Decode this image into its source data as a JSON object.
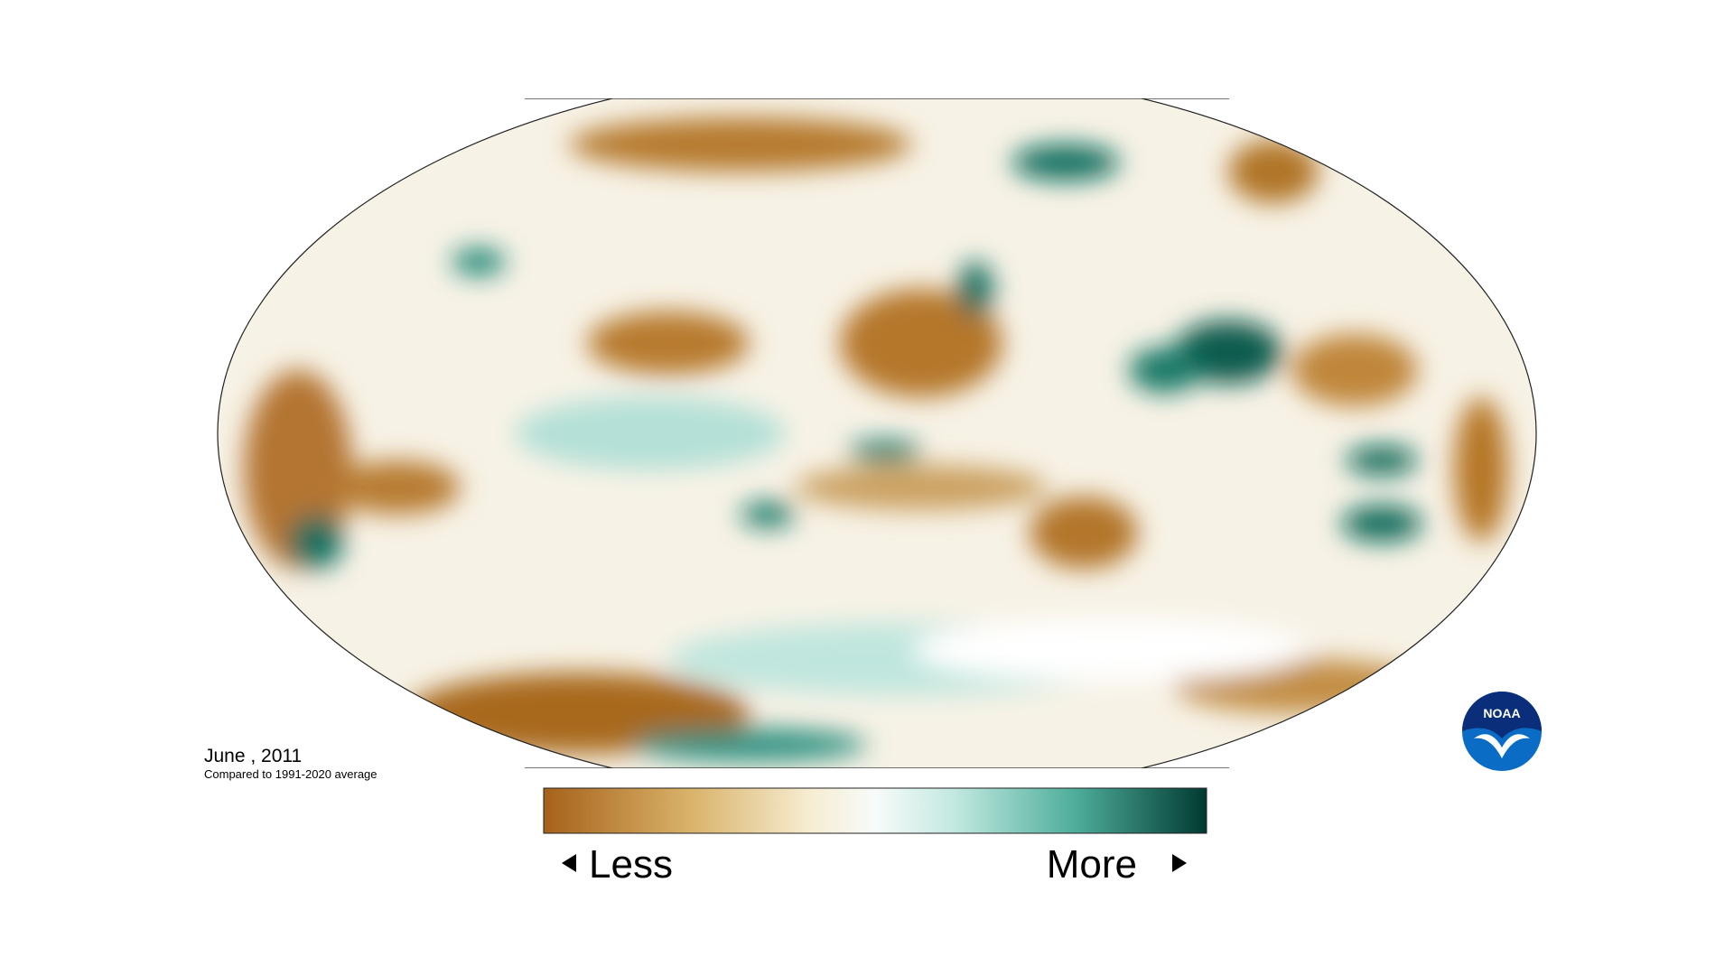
{
  "map": {
    "date": "June , 2011",
    "subtitle": "Compared to 1991-2020 average"
  },
  "legend": {
    "low_label": "Less",
    "high_label": "More"
  },
  "logo": {
    "text": "NOAA"
  }
}
